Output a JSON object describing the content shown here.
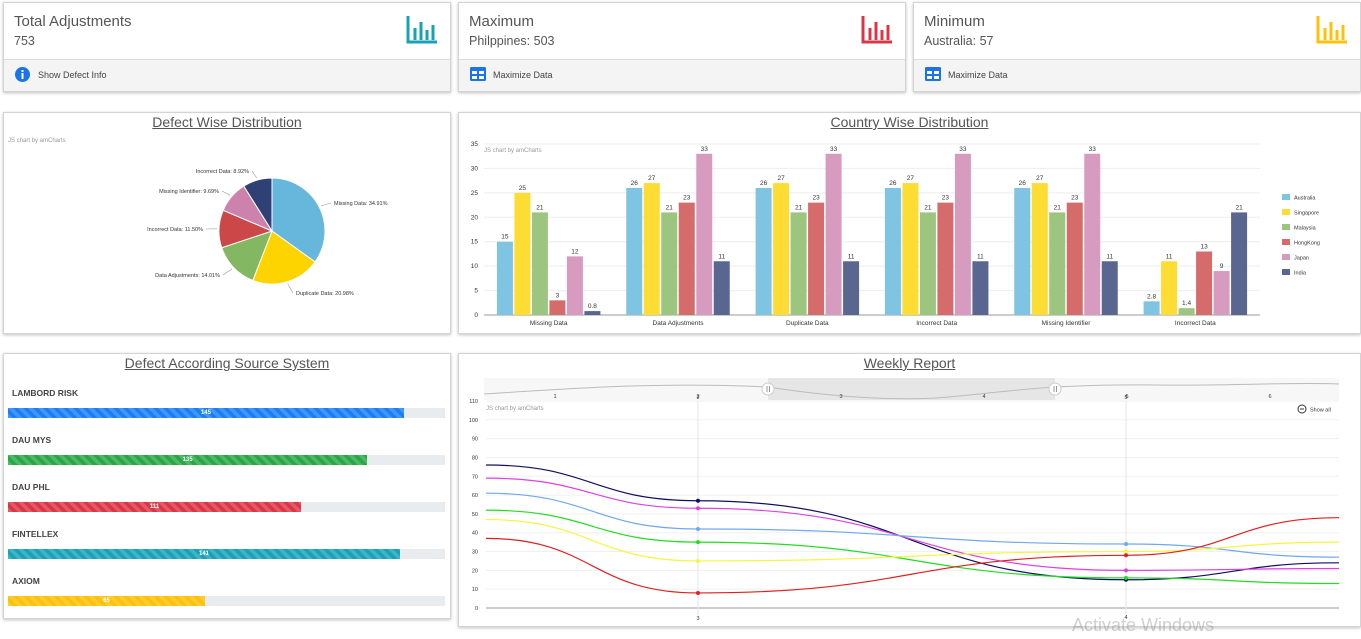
{
  "stats": [
    {
      "title": "Total Adjustments",
      "value": "753",
      "footer": "Show Defect Info",
      "color": "#17a2b8",
      "footer_icon": "info-icon"
    },
    {
      "title": "Maximum",
      "value": "Philppines: 503",
      "footer": "Maximize Data",
      "color": "#dc3545",
      "footer_icon": "table-icon"
    },
    {
      "title": "Minimum",
      "value": "Australia: 57",
      "footer": "Maximize Data",
      "color": "#ffc107",
      "footer_icon": "table-icon"
    }
  ],
  "defect_wise": {
    "title": "Defect Wise Distribution",
    "credit": "JS chart by amCharts",
    "chart_data": {
      "type": "pie",
      "slices": [
        {
          "label": "Missing Data: 34.91%",
          "value": 34.91,
          "color": "#67b7dc"
        },
        {
          "label": "Duplicate Data: 20.98%",
          "value": 20.98,
          "color": "#fdd400"
        },
        {
          "label": "Data Adjustments: 14.01%",
          "value": 14.01,
          "color": "#84b761"
        },
        {
          "label": "Incorrect Data: 11.50%",
          "value": 11.5,
          "color": "#cc4748"
        },
        {
          "label": "Missing Identifier: 9.69%",
          "value": 9.69,
          "color": "#cd82ad"
        },
        {
          "label": "Incorrect Data: 8.92%",
          "value": 8.92,
          "color": "#2f4074"
        }
      ]
    }
  },
  "country_wise": {
    "title": "Country Wise Distribution",
    "credit": "JS chart by amCharts",
    "chart_data": {
      "type": "bar",
      "categories": [
        "Missing Data",
        "Data Adjustments",
        "Duplicate Data",
        "Incorrect Data",
        "Missing Identifier",
        "Incorrect Data"
      ],
      "series": [
        {
          "name": "Australia",
          "color": "#7fc4e3",
          "values": [
            15,
            26,
            26,
            26,
            26,
            2.8
          ]
        },
        {
          "name": "Singapore",
          "color": "#fddc33",
          "values": [
            25,
            27,
            27,
            27,
            27,
            11
          ]
        },
        {
          "name": "Malaysia",
          "color": "#9cc57f",
          "values": [
            21,
            21,
            21,
            21,
            21,
            1.4
          ]
        },
        {
          "name": "HongKong",
          "color": "#d66b6b",
          "values": [
            3,
            23,
            23,
            23,
            23,
            13
          ]
        },
        {
          "name": "Japan",
          "color": "#d89bc0",
          "values": [
            12,
            33,
            33,
            33,
            33,
            9
          ]
        },
        {
          "name": "India",
          "color": "#596690",
          "values": [
            0.8,
            11,
            11,
            11,
            11,
            21
          ]
        }
      ],
      "ylim": [
        0,
        35
      ],
      "yticks": [
        0,
        5,
        10,
        15,
        20,
        25,
        30,
        35
      ],
      "legend": "right"
    }
  },
  "source_system": {
    "title": "Defect According Source System",
    "bars": [
      {
        "label": "LAMBORD RISK",
        "value": 145,
        "fraction": 0.906,
        "color": "#1a7ff5"
      },
      {
        "label": "DAU MYS",
        "value": 135,
        "fraction": 0.822,
        "color": "#28a745"
      },
      {
        "label": "DAU PHL",
        "value": 111,
        "fraction": 0.671,
        "color": "#dc3545"
      },
      {
        "label": "FINTELLEX",
        "value": 141,
        "fraction": 0.897,
        "color": "#17a2b8"
      },
      {
        "label": "AXIOM",
        "value": 65,
        "fraction": 0.451,
        "color": "#ffc107"
      }
    ]
  },
  "weekly": {
    "title": "Weekly Report",
    "credit": "JS chart by amCharts",
    "show_all": "Show all",
    "scrollbar_ticks": [
      "1",
      "2",
      "3",
      "4",
      "5",
      "6"
    ],
    "chart_data": {
      "type": "line",
      "x": [
        "2.5",
        "3",
        "4",
        "4.5"
      ],
      "x_tick_labels": [
        "2",
        "5"
      ],
      "x_bottom_labels": [
        "3",
        "4"
      ],
      "yticks": [
        0,
        10,
        20,
        30,
        40,
        50,
        60,
        70,
        80,
        90,
        100,
        110
      ],
      "ylim": [
        0,
        110
      ],
      "series": [
        {
          "color": "#101060",
          "values": [
            76,
            57,
            15,
            24
          ]
        },
        {
          "color": "#e040e0",
          "values": [
            69,
            53,
            20,
            21
          ]
        },
        {
          "color": "#6fa8f0",
          "values": [
            61,
            42,
            34,
            27
          ]
        },
        {
          "color": "#22dd22",
          "values": [
            52,
            35,
            16,
            13
          ]
        },
        {
          "color": "#f5f542",
          "values": [
            47,
            25,
            30,
            35
          ]
        },
        {
          "color": "#e02020",
          "values": [
            37,
            8,
            28,
            48
          ]
        }
      ]
    }
  },
  "watermark": "Activate Windows"
}
